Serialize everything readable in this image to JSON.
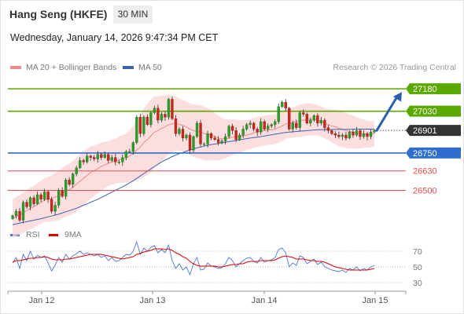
{
  "header": {
    "title": "Hang Seng (HKFE)",
    "interval": "30 MIN",
    "datetime": "Wednesday, January 14, 2026 9:47:34 PM CET"
  },
  "legend": {
    "bollinger_label": "MA 20 + Bollinger Bands",
    "ma50_label": "MA 50",
    "credit": "Research © 2026 Trading Central"
  },
  "rsi_legend": {
    "rsi_label": "RSI",
    "ma_label": "9MA"
  },
  "colors": {
    "resistance": "#5aa800",
    "support": "#2f6ecf",
    "target": "#e84b4b",
    "current": "#333333",
    "bollinger_fill": "#fbd3d3",
    "ma20": "#f08a8a",
    "ma50": "#3b63b0",
    "rsi": "#4a78d0",
    "rsi_ma": "#e00000",
    "arrow": "#2d5fae"
  },
  "chart_data": [
    {
      "type": "candlestick",
      "ylim": [
        26250,
        27270
      ],
      "last": 26901,
      "levels": [
        {
          "value": 27180,
          "label": "27180",
          "kind": "resistance"
        },
        {
          "value": 27030,
          "label": "27030",
          "kind": "resistance"
        },
        {
          "value": 26901,
          "label": "26901",
          "kind": "current"
        },
        {
          "value": 26750,
          "label": "26750",
          "kind": "support"
        },
        {
          "value": 26630,
          "label": "26630",
          "kind": "target"
        },
        {
          "value": 26500,
          "label": "26500",
          "kind": "target"
        }
      ],
      "x_ticks": [
        "Jan 12",
        "Jan 13",
        "Jan 14",
        "Jan 15"
      ],
      "arrow": {
        "from": 26901,
        "to": 27180
      },
      "close": [
        26330,
        26360,
        26300,
        26420,
        26390,
        26450,
        26410,
        26470,
        26440,
        26490,
        26440,
        26360,
        26400,
        26500,
        26460,
        26570,
        26540,
        26610,
        26650,
        26700,
        26690,
        26730,
        26720,
        26710,
        26740,
        26720,
        26740,
        26700,
        26720,
        26690,
        26690,
        26720,
        26760,
        26760,
        26820,
        26990,
        26880,
        26990,
        26940,
        27020,
        27050,
        26970,
        27010,
        26990,
        27110,
        26980,
        26880,
        26910,
        26850,
        26870,
        26770,
        26860,
        26950,
        26810,
        26810,
        26880,
        26850,
        26840,
        26820,
        26830,
        26860,
        26930,
        26900,
        26840,
        26870,
        26910,
        26940,
        26950,
        26910,
        26890,
        26960,
        26910,
        26930,
        26940,
        26960,
        27060,
        27090,
        27050,
        26910,
        26950,
        26920,
        27020,
        27010,
        26950,
        26970,
        27000,
        26950,
        26970,
        26920,
        26900,
        26880,
        26870,
        26860,
        26870,
        26850,
        26890,
        26870,
        26900,
        26860,
        26880,
        26860,
        26890,
        26901
      ],
      "ma20": [
        26310,
        26325,
        26335,
        26350,
        26365,
        26380,
        26390,
        26405,
        26420,
        26435,
        26440,
        26445,
        26455,
        26465,
        26480,
        26495,
        26505,
        26520,
        26540,
        26560,
        26580,
        26600,
        26620,
        26630,
        26645,
        26660,
        26670,
        26680,
        26690,
        26695,
        26705,
        26710,
        26715,
        26730,
        26745,
        26770,
        26790,
        26820,
        26840,
        26865,
        26890,
        26900,
        26915,
        26925,
        26940,
        26945,
        26950,
        26940,
        26935,
        26925,
        26910,
        26900,
        26895,
        26890,
        26880,
        26875,
        26870,
        26860,
        26850,
        26845,
        26845,
        26850,
        26855,
        26860,
        26860,
        26865,
        26870,
        26875,
        26885,
        26890,
        26895,
        26900,
        26905,
        26905,
        26910,
        26920,
        26930,
        26945,
        26950,
        26955,
        26960,
        26965,
        26970,
        26975,
        26975,
        26975,
        26970,
        26960,
        26950,
        26940,
        26930,
        26925,
        26915,
        26910,
        26900,
        26895,
        26890,
        26885,
        26880,
        26880,
        26875,
        26875,
        26880
      ],
      "bb_width": [
        130,
        130,
        132,
        134,
        136,
        138,
        140,
        142,
        144,
        146,
        150,
        155,
        160,
        165,
        170,
        172,
        175,
        178,
        180,
        182,
        180,
        178,
        176,
        170,
        165,
        160,
        155,
        150,
        150,
        152,
        155,
        160,
        165,
        175,
        185,
        200,
        215,
        230,
        240,
        245,
        240,
        230,
        220,
        210,
        200,
        190,
        180,
        175,
        170,
        170,
        172,
        175,
        178,
        180,
        180,
        175,
        170,
        160,
        150,
        140,
        130,
        125,
        120,
        115,
        110,
        105,
        100,
        100,
        100,
        100,
        100,
        100,
        100,
        100,
        100,
        100,
        100,
        100,
        100,
        102,
        105,
        108,
        110,
        110,
        108,
        105,
        100,
        100,
        102,
        105,
        110,
        115,
        120,
        120,
        118,
        115,
        110,
        105,
        100,
        95,
        90,
        88,
        85
      ],
      "ma50": [
        26270,
        26275,
        26280,
        26285,
        26290,
        26295,
        26300,
        26305,
        26310,
        26316,
        26322,
        26328,
        26334,
        26340,
        26348,
        26356,
        26364,
        26372,
        26380,
        26390,
        26400,
        26410,
        26420,
        26430,
        26440,
        26452,
        26464,
        26476,
        26488,
        26500,
        26512,
        26524,
        26536,
        26550,
        26564,
        26580,
        26596,
        26612,
        26628,
        26644,
        26660,
        26675,
        26690,
        26702,
        26714,
        26726,
        26736,
        26746,
        26754,
        26762,
        26770,
        26778,
        26784,
        26790,
        26796,
        26802,
        26806,
        26810,
        26814,
        26818,
        26822,
        26826,
        26830,
        26834,
        26838,
        26842,
        26846,
        26850,
        26853,
        26856,
        26860,
        26864,
        26868,
        26872,
        26876,
        26880,
        26884,
        26888,
        26890,
        26892,
        26894,
        26896,
        26898,
        26900,
        26902,
        26904,
        26906,
        26906,
        26907,
        26908,
        26908,
        26908,
        26908,
        26908,
        26909,
        26909,
        26910,
        26910,
        26910,
        26910,
        26910,
        26910,
        26910
      ]
    },
    {
      "type": "line",
      "ylim": [
        20,
        85
      ],
      "y_ticks": [
        70,
        50,
        30
      ],
      "rsi": [
        55,
        62,
        48,
        66,
        58,
        70,
        60,
        65,
        62,
        64,
        55,
        45,
        52,
        62,
        56,
        66,
        60,
        64,
        67,
        70,
        66,
        68,
        66,
        64,
        66,
        62,
        64,
        58,
        62,
        57,
        58,
        62,
        66,
        65,
        70,
        82,
        66,
        74,
        70,
        75,
        77,
        68,
        72,
        68,
        78,
        58,
        48,
        54,
        46,
        50,
        40,
        54,
        62,
        46,
        47,
        55,
        51,
        50,
        48,
        49,
        54,
        62,
        58,
        50,
        54,
        58,
        61,
        62,
        57,
        55,
        62,
        56,
        58,
        59,
        62,
        72,
        74,
        68,
        50,
        55,
        52,
        64,
        62,
        54,
        57,
        60,
        53,
        56,
        50,
        48,
        46,
        45,
        44,
        46,
        43,
        48,
        46,
        50,
        45,
        48,
        46,
        50,
        52
      ],
      "rsi_ma": [
        56,
        58,
        58,
        59,
        60,
        61,
        61,
        62,
        62,
        63,
        62,
        60,
        59,
        59,
        59,
        60,
        60,
        61,
        62,
        63,
        64,
        65,
        66,
        66,
        66,
        66,
        65,
        64,
        63,
        62,
        61,
        60,
        61,
        62,
        63,
        66,
        67,
        69,
        70,
        71,
        73,
        73,
        73,
        72,
        73,
        71,
        68,
        66,
        63,
        61,
        57,
        54,
        52,
        51,
        51,
        51,
        51,
        51,
        50,
        50,
        51,
        52,
        53,
        53,
        54,
        54,
        56,
        57,
        57,
        57,
        58,
        58,
        58,
        58,
        59,
        61,
        63,
        64,
        63,
        62,
        60,
        60,
        60,
        59,
        58,
        58,
        57,
        57,
        56,
        54,
        52,
        50,
        49,
        48,
        47,
        46,
        46,
        46,
        46,
        46,
        46,
        47,
        48
      ]
    }
  ]
}
